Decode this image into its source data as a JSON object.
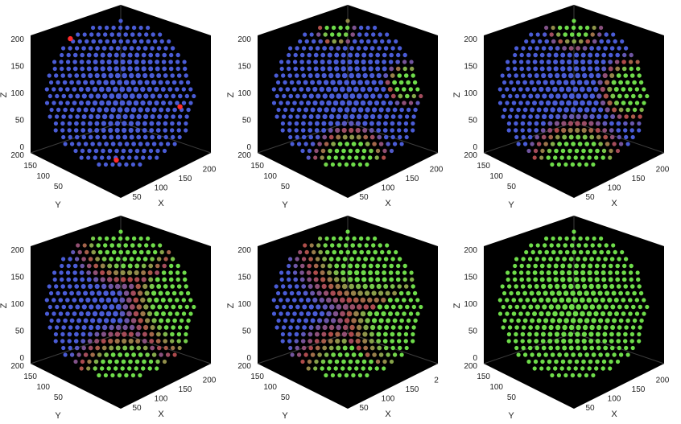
{
  "chart_data": [
    {
      "type": "scatter",
      "projection": "3d",
      "axes": {
        "xlabel": "X",
        "ylabel": "Y",
        "zlabel": "Z",
        "x_ticks": [
          50,
          100,
          150,
          200
        ],
        "y_ticks": [
          50,
          100,
          150,
          200
        ],
        "z_ticks": [
          0,
          50,
          100,
          150,
          200
        ],
        "xlim": [
          0,
          200
        ],
        "ylim": [
          0,
          200
        ],
        "zlim": [
          0,
          200
        ]
      },
      "shape": "sphere of points centered at (100,100,100), radius ~100",
      "base_color": "#4a5cd6",
      "accent_color": "#ff2a2a",
      "green_regions": [],
      "red_spots": [
        {
          "u": 0.16,
          "v": 0.12
        },
        {
          "u": 0.9,
          "v": 0.58
        },
        {
          "u": 0.47,
          "v": 0.94
        }
      ]
    },
    {
      "type": "scatter",
      "projection": "3d",
      "axes": {
        "xlabel": "X",
        "ylabel": "Y",
        "zlabel": "Z",
        "x_ticks": [
          50,
          100,
          150,
          200
        ],
        "y_ticks": [
          50,
          100,
          150,
          200
        ],
        "z_ticks": [
          0,
          50,
          100,
          150,
          200
        ],
        "xlim": [
          0,
          200
        ],
        "ylim": [
          0,
          200
        ],
        "zlim": [
          0,
          200
        ]
      },
      "base_color": "#4a5cd6",
      "green_regions": [
        {
          "u": 0.42,
          "v": 0.05,
          "r": 0.14
        },
        {
          "u": 0.9,
          "v": 0.42,
          "r": 0.16
        },
        {
          "u": 0.52,
          "v": 0.98,
          "r": 0.3
        }
      ]
    },
    {
      "type": "scatter",
      "projection": "3d",
      "axes": {
        "xlabel": "X",
        "ylabel": "Y",
        "zlabel": "Z",
        "x_ticks": [
          50,
          100,
          150,
          200
        ],
        "y_ticks": [
          50,
          100,
          150,
          200
        ],
        "z_ticks": [
          0,
          50,
          100,
          150,
          200
        ],
        "xlim": [
          0,
          200
        ],
        "ylim": [
          0,
          200
        ],
        "zlim": [
          0,
          200
        ]
      },
      "base_color": "#4a5cd6",
      "green_regions": [
        {
          "u": 0.5,
          "v": 0.0,
          "r": 0.22
        },
        {
          "u": 0.9,
          "v": 0.46,
          "r": 0.25
        },
        {
          "u": 0.52,
          "v": 1.0,
          "r": 0.38
        }
      ]
    },
    {
      "type": "scatter",
      "projection": "3d",
      "axes": {
        "xlabel": "X",
        "ylabel": "Y",
        "zlabel": "Z",
        "x_ticks": [
          50,
          100,
          150,
          200
        ],
        "y_ticks": [
          50,
          100,
          150,
          200
        ],
        "z_ticks": [
          0,
          50,
          100,
          150,
          200
        ],
        "xlim": [
          0,
          200
        ],
        "ylim": [
          0,
          200
        ],
        "zlim": [
          0,
          200
        ]
      },
      "base_color": "#4a5cd6",
      "green_regions": [
        {
          "u": 0.55,
          "v": 0.0,
          "r": 0.42
        },
        {
          "u": 1.0,
          "v": 0.45,
          "r": 0.52
        },
        {
          "u": 0.55,
          "v": 1.05,
          "r": 0.45
        }
      ]
    },
    {
      "type": "scatter",
      "projection": "3d",
      "axes": {
        "xlabel": "X",
        "ylabel": "Y",
        "zlabel": "Z",
        "x_ticks": [
          50,
          100,
          150,
          "2"
        ],
        "y_ticks": [
          50,
          100,
          150,
          200
        ],
        "z_ticks": [
          0,
          50,
          100,
          150,
          200
        ],
        "xlim": [
          0,
          200
        ],
        "ylim": [
          0,
          200
        ],
        "zlim": [
          0,
          200
        ]
      },
      "base_color": "#4a5cd6",
      "green_regions": [
        {
          "u": 0.7,
          "v": 0.0,
          "r": 0.65
        },
        {
          "u": 1.05,
          "v": 0.5,
          "r": 0.72
        },
        {
          "u": 0.6,
          "v": 1.1,
          "r": 0.6
        }
      ]
    },
    {
      "type": "scatter",
      "projection": "3d",
      "axes": {
        "xlabel": "X",
        "ylabel": "Y",
        "zlabel": "Z",
        "x_ticks": [
          50,
          100,
          150,
          200
        ],
        "y_ticks": [
          50,
          100,
          150,
          200
        ],
        "z_ticks": [
          0,
          50,
          100,
          150,
          200
        ],
        "xlim": [
          0,
          200
        ],
        "ylim": [
          0,
          200
        ],
        "zlim": [
          0,
          200
        ]
      },
      "base_color": "#6edc4a",
      "green_regions": [
        {
          "u": 0.5,
          "v": 0.5,
          "r": 2.0
        }
      ]
    }
  ],
  "colors": {
    "background": "#000000",
    "axis_line": "#3c3c3c",
    "tick_text": "#222222",
    "blue": "#4a5cd6",
    "green": "#6edc4a",
    "transition": "#b04a4a"
  }
}
